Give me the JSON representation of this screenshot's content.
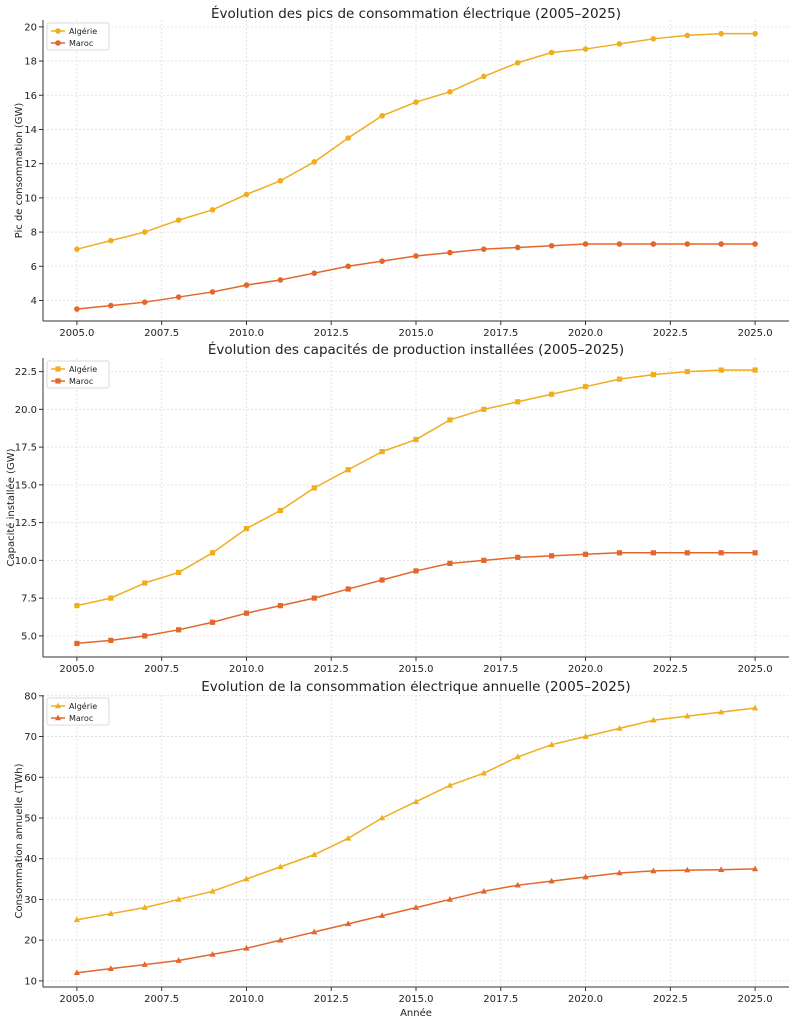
{
  "chart_data": [
    {
      "type": "line",
      "title": "Évolution des pics de consommation électrique (2005–2025)",
      "xlabel": "",
      "ylabel": "Pic de consommation (GW)",
      "marker": "circle",
      "x": [
        2005,
        2006,
        2007,
        2008,
        2009,
        2010,
        2011,
        2012,
        2013,
        2014,
        2015,
        2016,
        2017,
        2018,
        2019,
        2020,
        2021,
        2022,
        2023,
        2024,
        2025
      ],
      "xlim": [
        2004,
        2026
      ],
      "xticks": [
        2005.0,
        2007.5,
        2010.0,
        2012.5,
        2015.0,
        2017.5,
        2020.0,
        2022.5,
        2025.0
      ],
      "xtick_labels": [
        "2005.0",
        "2007.5",
        "2010.0",
        "2012.5",
        "2015.0",
        "2017.5",
        "2020.0",
        "2022.5",
        "2025.0"
      ],
      "ylim": [
        2.8,
        20.4
      ],
      "yticks": [
        4,
        6,
        8,
        10,
        12,
        14,
        16,
        18,
        20
      ],
      "ytick_labels": [
        "4",
        "6",
        "8",
        "10",
        "12",
        "14",
        "16",
        "18",
        "20"
      ],
      "legend": "top-left",
      "grid": true,
      "series": [
        {
          "name": "Algérie",
          "color": "#f0ad1d",
          "values": [
            7.0,
            7.5,
            8.0,
            8.7,
            9.3,
            10.2,
            11.0,
            12.1,
            13.5,
            14.8,
            15.6,
            16.2,
            17.1,
            17.9,
            18.5,
            18.7,
            19.0,
            19.3,
            19.5,
            19.6,
            19.6
          ]
        },
        {
          "name": "Maroc",
          "color": "#e2672b",
          "values": [
            3.5,
            3.7,
            3.9,
            4.2,
            4.5,
            4.9,
            5.2,
            5.6,
            6.0,
            6.3,
            6.6,
            6.8,
            7.0,
            7.1,
            7.2,
            7.3,
            7.3,
            7.3,
            7.3,
            7.3,
            7.3
          ]
        }
      ]
    },
    {
      "type": "line",
      "title": "Évolution des capacités de production installées (2005–2025)",
      "xlabel": "",
      "ylabel": "Capacité installée (GW)",
      "marker": "square",
      "x": [
        2005,
        2006,
        2007,
        2008,
        2009,
        2010,
        2011,
        2012,
        2013,
        2014,
        2015,
        2016,
        2017,
        2018,
        2019,
        2020,
        2021,
        2022,
        2023,
        2024,
        2025
      ],
      "xlim": [
        2004,
        2026
      ],
      "xticks": [
        2005.0,
        2007.5,
        2010.0,
        2012.5,
        2015.0,
        2017.5,
        2020.0,
        2022.5,
        2025.0
      ],
      "xtick_labels": [
        "2005.0",
        "2007.5",
        "2010.0",
        "2012.5",
        "2015.0",
        "2017.5",
        "2020.0",
        "2022.5",
        "2025.0"
      ],
      "ylim": [
        3.6,
        23.4
      ],
      "yticks": [
        5.0,
        7.5,
        10.0,
        12.5,
        15.0,
        17.5,
        20.0,
        22.5
      ],
      "ytick_labels": [
        "5.0",
        "7.5",
        "10.0",
        "12.5",
        "15.0",
        "17.5",
        "20.0",
        "22.5"
      ],
      "legend": "top-left",
      "grid": true,
      "series": [
        {
          "name": "Algérie",
          "color": "#f0ad1d",
          "values": [
            7.0,
            7.5,
            8.5,
            9.2,
            10.5,
            12.1,
            13.3,
            14.8,
            16.0,
            17.2,
            18.0,
            19.3,
            20.0,
            20.5,
            21.0,
            21.5,
            22.0,
            22.3,
            22.5,
            22.6,
            22.6
          ]
        },
        {
          "name": "Maroc",
          "color": "#e2672b",
          "values": [
            4.5,
            4.7,
            5.0,
            5.4,
            5.9,
            6.5,
            7.0,
            7.5,
            8.1,
            8.7,
            9.3,
            9.8,
            10.0,
            10.2,
            10.3,
            10.4,
            10.5,
            10.5,
            10.5,
            10.5,
            10.5
          ]
        }
      ]
    },
    {
      "type": "line",
      "title": "Évolution de la consommation électrique annuelle (2005–2025)",
      "xlabel": "Année",
      "ylabel": "Consommation annuelle (TWh)",
      "marker": "triangle",
      "x": [
        2005,
        2006,
        2007,
        2008,
        2009,
        2010,
        2011,
        2012,
        2013,
        2014,
        2015,
        2016,
        2017,
        2018,
        2019,
        2020,
        2021,
        2022,
        2023,
        2024,
        2025
      ],
      "xlim": [
        2004,
        2026
      ],
      "xticks": [
        2005.0,
        2007.5,
        2010.0,
        2012.5,
        2015.0,
        2017.5,
        2020.0,
        2022.5,
        2025.0
      ],
      "xtick_labels": [
        "2005.0",
        "2007.5",
        "2010.0",
        "2012.5",
        "2015.0",
        "2017.5",
        "2020.0",
        "2022.5",
        "2025.0"
      ],
      "ylim": [
        8.5,
        80.2
      ],
      "yticks": [
        10,
        20,
        30,
        40,
        50,
        60,
        70,
        80
      ],
      "ytick_labels": [
        "10",
        "20",
        "30",
        "40",
        "50",
        "60",
        "70",
        "80"
      ],
      "legend": "top-left",
      "grid": true,
      "series": [
        {
          "name": "Algérie",
          "color": "#f0ad1d",
          "values": [
            25.0,
            26.5,
            28.0,
            30.0,
            32.0,
            35.0,
            38.0,
            41.0,
            45.0,
            50.0,
            54.0,
            58.0,
            61.0,
            65.0,
            68.0,
            70.0,
            72.0,
            74.0,
            75.0,
            76.0,
            77.0
          ]
        },
        {
          "name": "Maroc",
          "color": "#e2672b",
          "values": [
            12.0,
            13.0,
            14.0,
            15.0,
            16.5,
            18.0,
            20.0,
            22.0,
            24.0,
            26.0,
            28.0,
            30.0,
            32.0,
            33.5,
            34.5,
            35.5,
            36.5,
            37.0,
            37.2,
            37.3,
            37.5
          ]
        }
      ]
    }
  ]
}
